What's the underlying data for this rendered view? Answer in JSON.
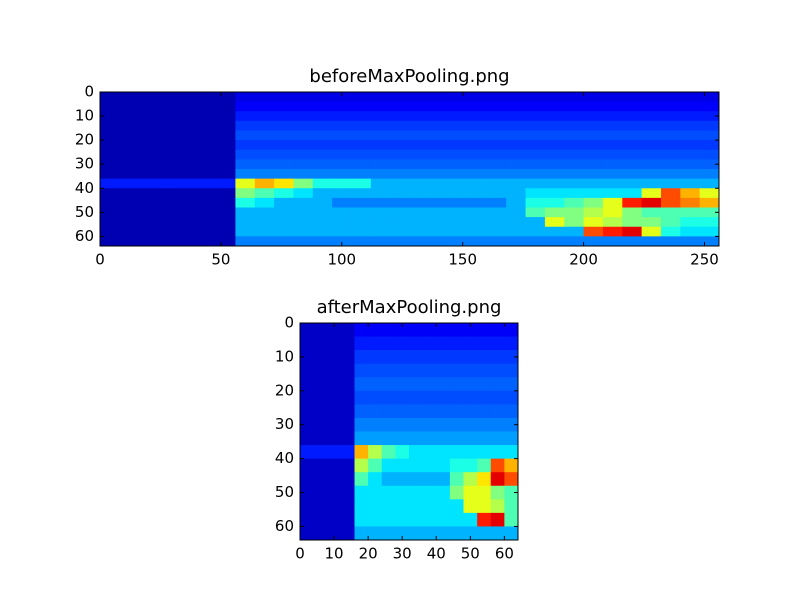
{
  "chart_data": [
    {
      "type": "heatmap",
      "title": "beforeMaxPooling.png",
      "colormap": "jet",
      "zlim": [
        0,
        1
      ],
      "xlim": [
        0,
        256
      ],
      "ylim": [
        64,
        0
      ],
      "xticks": [
        0,
        50,
        100,
        150,
        200,
        250
      ],
      "yticks": [
        0,
        10,
        20,
        30,
        40,
        50,
        60
      ],
      "z": [
        [
          0.05,
          0.05,
          0.05,
          0.05,
          0.05,
          0.05,
          0.05,
          0.1,
          0.1,
          0.1,
          0.1,
          0.1,
          0.1,
          0.1,
          0.1,
          0.1,
          0.1,
          0.1,
          0.1,
          0.1,
          0.1,
          0.1,
          0.1,
          0.1,
          0.1,
          0.1,
          0.1,
          0.1,
          0.1,
          0.1,
          0.1,
          0.1
        ],
        [
          0.05,
          0.05,
          0.05,
          0.05,
          0.05,
          0.05,
          0.05,
          0.12,
          0.12,
          0.12,
          0.12,
          0.12,
          0.12,
          0.12,
          0.12,
          0.12,
          0.12,
          0.12,
          0.12,
          0.12,
          0.12,
          0.12,
          0.12,
          0.12,
          0.12,
          0.12,
          0.12,
          0.12,
          0.12,
          0.12,
          0.12,
          0.12
        ],
        [
          0.05,
          0.05,
          0.05,
          0.05,
          0.05,
          0.05,
          0.05,
          0.15,
          0.15,
          0.15,
          0.15,
          0.15,
          0.15,
          0.15,
          0.15,
          0.15,
          0.15,
          0.15,
          0.15,
          0.15,
          0.15,
          0.15,
          0.15,
          0.15,
          0.15,
          0.15,
          0.15,
          0.15,
          0.15,
          0.15,
          0.15,
          0.15
        ],
        [
          0.05,
          0.05,
          0.05,
          0.05,
          0.05,
          0.05,
          0.05,
          0.18,
          0.18,
          0.18,
          0.18,
          0.18,
          0.18,
          0.18,
          0.18,
          0.18,
          0.18,
          0.18,
          0.18,
          0.18,
          0.18,
          0.18,
          0.18,
          0.18,
          0.18,
          0.18,
          0.18,
          0.18,
          0.18,
          0.18,
          0.18,
          0.18
        ],
        [
          0.05,
          0.05,
          0.05,
          0.05,
          0.05,
          0.05,
          0.05,
          0.2,
          0.2,
          0.2,
          0.2,
          0.2,
          0.2,
          0.2,
          0.2,
          0.2,
          0.2,
          0.2,
          0.2,
          0.2,
          0.2,
          0.2,
          0.2,
          0.2,
          0.2,
          0.2,
          0.2,
          0.2,
          0.2,
          0.2,
          0.2,
          0.2
        ],
        [
          0.05,
          0.05,
          0.05,
          0.05,
          0.05,
          0.05,
          0.05,
          0.18,
          0.18,
          0.18,
          0.18,
          0.18,
          0.18,
          0.18,
          0.18,
          0.18,
          0.18,
          0.18,
          0.18,
          0.18,
          0.18,
          0.18,
          0.18,
          0.18,
          0.18,
          0.18,
          0.18,
          0.18,
          0.18,
          0.18,
          0.18,
          0.18
        ],
        [
          0.05,
          0.05,
          0.05,
          0.05,
          0.05,
          0.05,
          0.05,
          0.2,
          0.2,
          0.2,
          0.2,
          0.2,
          0.2,
          0.2,
          0.2,
          0.2,
          0.2,
          0.2,
          0.2,
          0.2,
          0.2,
          0.2,
          0.2,
          0.2,
          0.2,
          0.2,
          0.2,
          0.2,
          0.2,
          0.2,
          0.2,
          0.2
        ],
        [
          0.05,
          0.05,
          0.05,
          0.05,
          0.05,
          0.05,
          0.05,
          0.22,
          0.22,
          0.22,
          0.22,
          0.22,
          0.22,
          0.22,
          0.22,
          0.22,
          0.22,
          0.22,
          0.22,
          0.22,
          0.22,
          0.22,
          0.22,
          0.22,
          0.22,
          0.22,
          0.22,
          0.22,
          0.22,
          0.22,
          0.22,
          0.22
        ],
        [
          0.05,
          0.05,
          0.05,
          0.05,
          0.05,
          0.05,
          0.05,
          0.25,
          0.25,
          0.25,
          0.25,
          0.25,
          0.25,
          0.25,
          0.25,
          0.25,
          0.25,
          0.25,
          0.25,
          0.25,
          0.25,
          0.25,
          0.25,
          0.25,
          0.25,
          0.25,
          0.25,
          0.25,
          0.25,
          0.25,
          0.25,
          0.25
        ],
        [
          0.15,
          0.15,
          0.15,
          0.15,
          0.15,
          0.15,
          0.15,
          0.6,
          0.7,
          0.65,
          0.5,
          0.4,
          0.4,
          0.4,
          0.3,
          0.3,
          0.3,
          0.3,
          0.3,
          0.3,
          0.3,
          0.3,
          0.3,
          0.3,
          0.3,
          0.3,
          0.3,
          0.3,
          0.3,
          0.3,
          0.3,
          0.3
        ],
        [
          0.05,
          0.05,
          0.05,
          0.05,
          0.05,
          0.05,
          0.05,
          0.5,
          0.45,
          0.4,
          0.35,
          0.3,
          0.3,
          0.3,
          0.3,
          0.3,
          0.3,
          0.3,
          0.3,
          0.3,
          0.3,
          0.3,
          0.35,
          0.35,
          0.35,
          0.35,
          0.35,
          0.35,
          0.6,
          0.8,
          0.7,
          0.6
        ],
        [
          0.05,
          0.05,
          0.05,
          0.05,
          0.05,
          0.05,
          0.05,
          0.4,
          0.35,
          0.3,
          0.3,
          0.3,
          0.25,
          0.25,
          0.25,
          0.25,
          0.25,
          0.25,
          0.25,
          0.25,
          0.25,
          0.3,
          0.4,
          0.4,
          0.45,
          0.5,
          0.6,
          0.85,
          0.9,
          0.8,
          0.75,
          0.7
        ],
        [
          0.05,
          0.05,
          0.05,
          0.05,
          0.05,
          0.05,
          0.05,
          0.3,
          0.3,
          0.3,
          0.3,
          0.3,
          0.3,
          0.3,
          0.3,
          0.3,
          0.3,
          0.3,
          0.3,
          0.3,
          0.3,
          0.3,
          0.45,
          0.5,
          0.5,
          0.55,
          0.6,
          0.5,
          0.45,
          0.45,
          0.45,
          0.45
        ],
        [
          0.05,
          0.05,
          0.05,
          0.05,
          0.05,
          0.05,
          0.05,
          0.3,
          0.3,
          0.3,
          0.3,
          0.3,
          0.3,
          0.3,
          0.3,
          0.3,
          0.3,
          0.3,
          0.3,
          0.3,
          0.3,
          0.3,
          0.3,
          0.6,
          0.5,
          0.6,
          0.55,
          0.5,
          0.5,
          0.45,
          0.4,
          0.4
        ],
        [
          0.05,
          0.05,
          0.05,
          0.05,
          0.05,
          0.05,
          0.05,
          0.3,
          0.3,
          0.3,
          0.3,
          0.3,
          0.3,
          0.3,
          0.3,
          0.3,
          0.3,
          0.3,
          0.3,
          0.3,
          0.3,
          0.3,
          0.3,
          0.3,
          0.3,
          0.8,
          0.85,
          0.9,
          0.6,
          0.4,
          0.35,
          0.35
        ],
        [
          0.05,
          0.05,
          0.05,
          0.05,
          0.05,
          0.05,
          0.05,
          0.25,
          0.25,
          0.25,
          0.25,
          0.25,
          0.25,
          0.25,
          0.25,
          0.25,
          0.25,
          0.25,
          0.25,
          0.25,
          0.25,
          0.25,
          0.25,
          0.25,
          0.25,
          0.25,
          0.25,
          0.25,
          0.25,
          0.25,
          0.25,
          0.25
        ]
      ]
    },
    {
      "type": "heatmap",
      "title": "afterMaxPooling.png",
      "colormap": "jet",
      "zlim": [
        0,
        1
      ],
      "xlim": [
        0,
        64
      ],
      "ylim": [
        64,
        0
      ],
      "xticks": [
        0,
        10,
        20,
        30,
        40,
        50,
        60
      ],
      "yticks": [
        0,
        10,
        20,
        30,
        40,
        50,
        60
      ],
      "z": [
        [
          0.07,
          0.07,
          0.07,
          0.07,
          0.12,
          0.12,
          0.12,
          0.12,
          0.12,
          0.12,
          0.12,
          0.12,
          0.12,
          0.12,
          0.12,
          0.12
        ],
        [
          0.07,
          0.07,
          0.07,
          0.07,
          0.15,
          0.15,
          0.15,
          0.15,
          0.15,
          0.15,
          0.15,
          0.15,
          0.15,
          0.15,
          0.15,
          0.15
        ],
        [
          0.07,
          0.07,
          0.07,
          0.07,
          0.18,
          0.18,
          0.18,
          0.18,
          0.18,
          0.18,
          0.18,
          0.18,
          0.18,
          0.18,
          0.18,
          0.18
        ],
        [
          0.07,
          0.07,
          0.07,
          0.07,
          0.2,
          0.2,
          0.2,
          0.2,
          0.2,
          0.2,
          0.2,
          0.2,
          0.2,
          0.2,
          0.2,
          0.2
        ],
        [
          0.07,
          0.07,
          0.07,
          0.07,
          0.22,
          0.22,
          0.22,
          0.22,
          0.22,
          0.22,
          0.22,
          0.22,
          0.22,
          0.22,
          0.22,
          0.22
        ],
        [
          0.07,
          0.07,
          0.07,
          0.07,
          0.2,
          0.2,
          0.2,
          0.2,
          0.2,
          0.2,
          0.2,
          0.2,
          0.2,
          0.2,
          0.2,
          0.2
        ],
        [
          0.07,
          0.07,
          0.07,
          0.07,
          0.22,
          0.22,
          0.22,
          0.22,
          0.22,
          0.22,
          0.22,
          0.22,
          0.22,
          0.22,
          0.22,
          0.22
        ],
        [
          0.07,
          0.07,
          0.07,
          0.07,
          0.25,
          0.25,
          0.25,
          0.25,
          0.25,
          0.25,
          0.25,
          0.25,
          0.25,
          0.25,
          0.25,
          0.25
        ],
        [
          0.07,
          0.07,
          0.07,
          0.07,
          0.28,
          0.28,
          0.28,
          0.28,
          0.28,
          0.28,
          0.28,
          0.28,
          0.28,
          0.28,
          0.28,
          0.28
        ],
        [
          0.15,
          0.15,
          0.15,
          0.15,
          0.7,
          0.55,
          0.45,
          0.4,
          0.35,
          0.35,
          0.35,
          0.35,
          0.35,
          0.35,
          0.35,
          0.35
        ],
        [
          0.07,
          0.07,
          0.07,
          0.07,
          0.55,
          0.45,
          0.35,
          0.35,
          0.35,
          0.35,
          0.35,
          0.4,
          0.4,
          0.45,
          0.8,
          0.7
        ],
        [
          0.07,
          0.07,
          0.07,
          0.07,
          0.45,
          0.35,
          0.3,
          0.3,
          0.3,
          0.3,
          0.3,
          0.45,
          0.55,
          0.65,
          0.9,
          0.8
        ],
        [
          0.07,
          0.07,
          0.07,
          0.07,
          0.35,
          0.35,
          0.35,
          0.35,
          0.35,
          0.35,
          0.35,
          0.5,
          0.6,
          0.6,
          0.5,
          0.45
        ],
        [
          0.07,
          0.07,
          0.07,
          0.07,
          0.35,
          0.35,
          0.35,
          0.35,
          0.35,
          0.35,
          0.35,
          0.35,
          0.6,
          0.6,
          0.55,
          0.45
        ],
        [
          0.07,
          0.07,
          0.07,
          0.07,
          0.35,
          0.35,
          0.35,
          0.35,
          0.35,
          0.35,
          0.35,
          0.35,
          0.35,
          0.85,
          0.9,
          0.45
        ],
        [
          0.07,
          0.07,
          0.07,
          0.07,
          0.3,
          0.3,
          0.3,
          0.3,
          0.3,
          0.3,
          0.3,
          0.3,
          0.3,
          0.3,
          0.3,
          0.3
        ]
      ]
    }
  ]
}
